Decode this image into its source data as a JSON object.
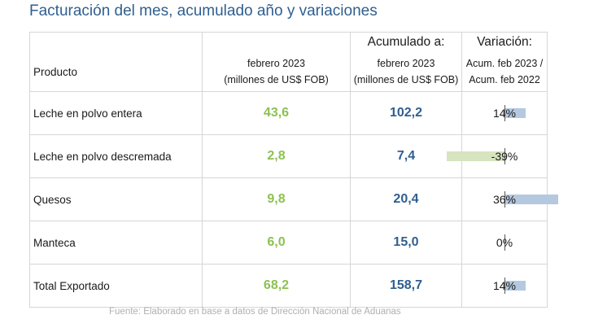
{
  "title": "Facturación del mes, acumulado año y variaciones",
  "header": {
    "producto": "Producto",
    "month_label": "febrero 2023",
    "month_unit": "(millones de US$ FOB)",
    "acum_title": "Acumulado a:",
    "acum_label": "febrero 2023",
    "acum_unit": "(millones de US$ FOB)",
    "var_title": "Variación:",
    "var_line1": "Acum. feb 2023 /",
    "var_line2": "Acum. feb 2022"
  },
  "rows": [
    {
      "producto": "Leche en polvo entera",
      "mes": "43,6",
      "acumulado": "102,2",
      "variacion": "14%",
      "variacion_value": 14
    },
    {
      "producto": "Leche en polvo descremada",
      "mes": "2,8",
      "acumulado": "7,4",
      "variacion": "-39%",
      "variacion_value": -39
    },
    {
      "producto": "Quesos",
      "mes": "9,8",
      "acumulado": "20,4",
      "variacion": "36%",
      "variacion_value": 36
    },
    {
      "producto": "Manteca",
      "mes": "6,0",
      "acumulado": "15,0",
      "variacion": "0%",
      "variacion_value": 0
    },
    {
      "producto": "Total Exportado",
      "mes": "68,2",
      "acumulado": "158,7",
      "variacion": "14%",
      "variacion_value": 14
    }
  ],
  "colors": {
    "positive_bar": "#b4c9e0",
    "negative_bar": "#d6e4bf",
    "month_values": "#8cc152",
    "acum_values": "#2f5f8f"
  },
  "source": "Fuente: Elaborado en base a datos de Dirección Nacional de Aduanas"
}
